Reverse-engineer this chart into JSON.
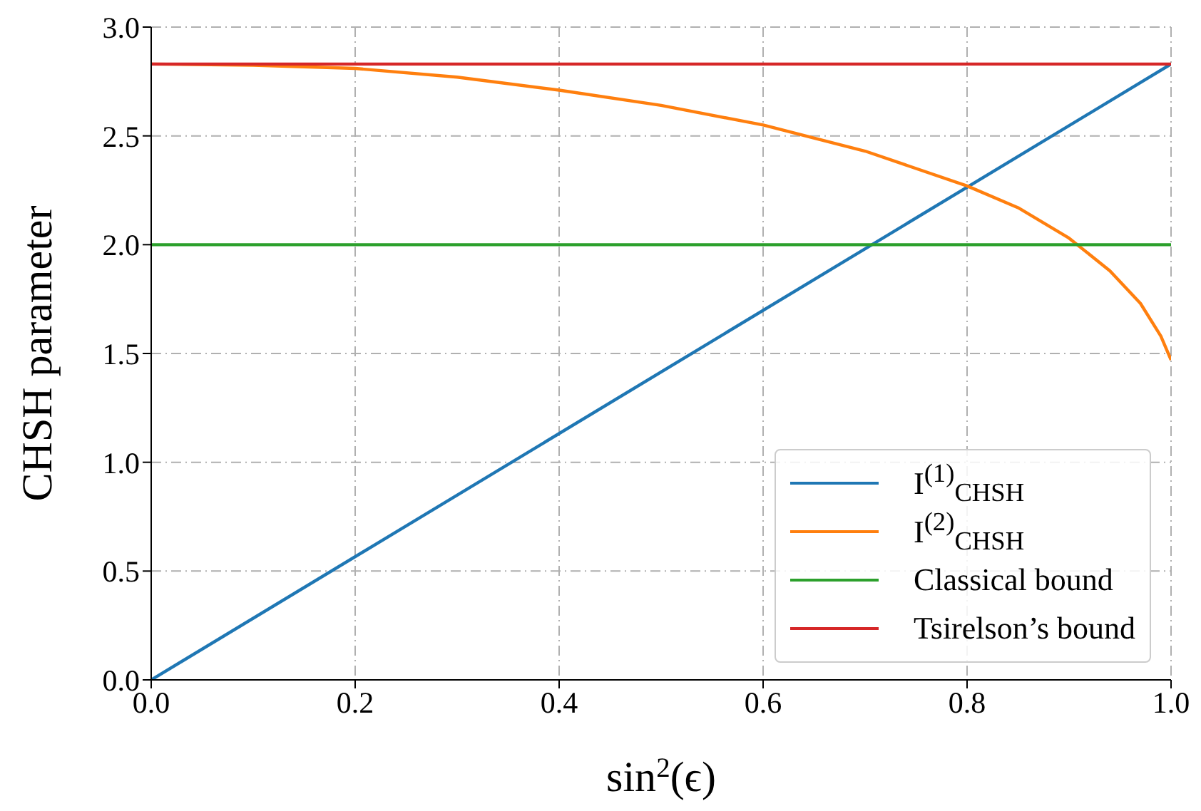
{
  "chart_data": {
    "type": "line",
    "xlabel": "sin$^{2}$(ϵ)",
    "ylabel": "CHSH parameter",
    "xlim": [
      0,
      1
    ],
    "ylim": [
      0,
      3
    ],
    "xticks": [
      {
        "value": 0,
        "label": "0.0"
      },
      0.2,
      0.4,
      0.6,
      0.8,
      {
        "value": 1,
        "label": "1.0"
      }
    ],
    "yticks": [
      {
        "value": 0,
        "label": "0.0"
      },
      0.5,
      {
        "value": 1,
        "label": "1.0"
      },
      1.5,
      {
        "value": 2,
        "label": "2.0"
      },
      2.5,
      {
        "value": 3,
        "label": "3.0"
      }
    ],
    "grid": true,
    "legend": "bottom right",
    "marker": "none",
    "line_style": "solid",
    "series": [
      {
        "name": "I$^{(1)}$$_{CHSH}$",
        "color": "#1f77b4",
        "x": [
          0,
          1
        ],
        "values": [
          0,
          2.83
        ]
      },
      {
        "name": "I$^{(2)}$$_{CHSH}$",
        "color": "#ff7f0e",
        "x": [
          0,
          0.1,
          0.2,
          0.3,
          0.4,
          0.5,
          0.6,
          0.7,
          0.8,
          0.85,
          0.9,
          0.94,
          0.97,
          0.99,
          1
        ],
        "values": [
          2.83,
          2.825,
          2.81,
          2.77,
          2.71,
          2.64,
          2.55,
          2.43,
          2.27,
          2.17,
          2.03,
          1.88,
          1.73,
          1.58,
          1.47
        ]
      },
      {
        "name": "Classical bound",
        "color": "#2ca02c",
        "x": [
          0,
          1
        ],
        "values": [
          2,
          2
        ]
      },
      {
        "name": "Tsirelson’s bound",
        "color": "#d62728",
        "x": [
          0,
          1
        ],
        "values": [
          2.83,
          2.83
        ]
      }
    ]
  }
}
